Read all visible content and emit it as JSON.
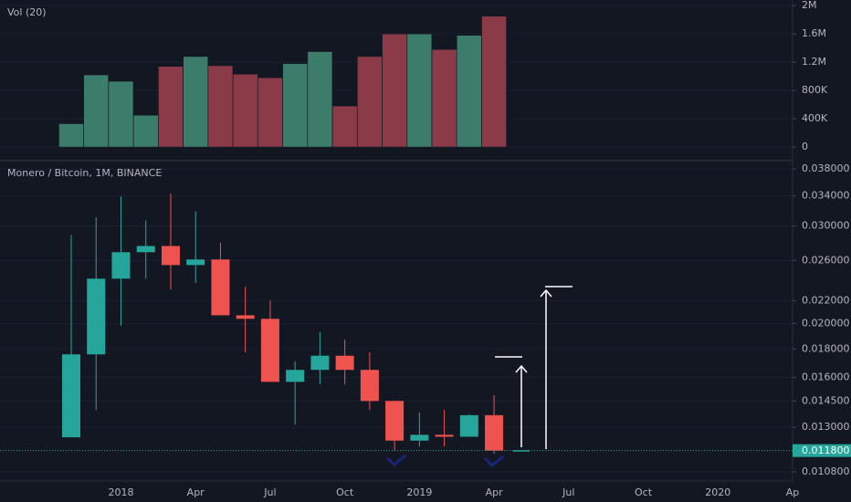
{
  "chart_data": [
    {
      "type": "bar",
      "title": "Vol (20)",
      "values": [
        330000,
        1020000,
        930000,
        450000,
        1140000,
        1280000,
        1150000,
        1030000,
        980000,
        1180000,
        1350000,
        580000,
        1280000,
        1600000,
        1600000,
        1380000,
        1580000,
        1850000,
        null,
        null,
        null,
        null,
        null,
        null,
        null,
        null,
        null,
        null,
        null,
        null
      ],
      "colors": [
        "#3b7d6a",
        "#3b7d6a",
        "#3b7d6a",
        "#3b7d6a",
        "#8b3a48",
        "#3b7d6a",
        "#8b3a48",
        "#8b3a48",
        "#8b3a48",
        "#3b7d6a",
        "#3b7d6a",
        "#8b3a48",
        "#8b3a48",
        "#8b3a48",
        "#3b7d6a",
        "#8b3a48",
        "#3b7d6a",
        "#8b3a48",
        null,
        null,
        null,
        null,
        null,
        null,
        null,
        null,
        null,
        null,
        null,
        null
      ],
      "ylim": [
        -180000,
        2080000
      ],
      "yticks": [
        0,
        {
          "value": 400000,
          "label": "400K"
        },
        {
          "value": 800000,
          "label": "800K"
        },
        {
          "value": 1200000,
          "label": "1.2M"
        },
        {
          "value": 1600000,
          "label": "1.6M"
        },
        {
          "value": 2000000,
          "label": "2M"
        }
      ]
    },
    {
      "type": "candlestick",
      "title": "Monero / Bitcoin, 1M, BINANCE",
      "categories": [
        null,
        null,
        "2018",
        null,
        null,
        "Apr",
        null,
        null,
        "Jul",
        null,
        null,
        "Oct",
        null,
        null,
        "2019",
        null,
        null,
        "Apr",
        null,
        null,
        "Jul",
        null,
        null,
        "Oct",
        null,
        null,
        "2020",
        null,
        null,
        "Ap"
      ],
      "open": [
        0.01247,
        0.0176,
        0.0241,
        0.0269,
        0.0276,
        0.0255,
        0.0261,
        0.0207,
        0.0204,
        0.0157,
        0.0165,
        0.0175,
        0.0165,
        0.0145,
        0.0123,
        0.0126,
        0.0125,
        0.01367,
        null,
        null,
        null,
        null,
        null,
        null,
        null,
        null,
        null,
        null,
        null,
        null
      ],
      "high": [
        0.0289,
        0.0311,
        0.0339,
        0.0307,
        0.0343,
        0.0319,
        0.028,
        0.0233,
        0.022,
        0.0171,
        0.0193,
        0.0187,
        0.01775,
        0.01454,
        0.01383,
        0.01398,
        0.01371,
        0.01486,
        null,
        null,
        null,
        null,
        null,
        null,
        null,
        null,
        null,
        null,
        null,
        null
      ],
      "low": [
        0.01247,
        0.01398,
        0.0198,
        0.0241,
        0.02305,
        0.02368,
        0.0207,
        0.01775,
        0.0157,
        0.01315,
        0.01555,
        0.01555,
        0.01398,
        0.01179,
        0.012,
        0.012,
        0.0125,
        0.01165,
        null,
        null,
        null,
        null,
        null,
        null,
        null,
        null,
        null,
        null,
        null,
        null
      ],
      "close": [
        0.0176,
        0.0241,
        0.0269,
        0.0276,
        0.0255,
        0.0261,
        0.0207,
        0.0204,
        0.0157,
        0.0165,
        0.0175,
        0.0165,
        0.0145,
        0.0123,
        0.0126,
        0.0125,
        0.01367,
        0.0118,
        null,
        null,
        null,
        null,
        null,
        null,
        null,
        null,
        null,
        null,
        null,
        null
      ],
      "up_color": "#26a69a",
      "down_color": "#ef5350",
      "log_scale": true,
      "ylim": [
        0.0104,
        0.0392
      ],
      "yticks": [
        {
          "value": 0.0108,
          "label": "0.010800"
        },
        {
          "value": 0.013,
          "label": "0.013000"
        },
        {
          "value": 0.0145,
          "label": "0.014500"
        },
        {
          "value": 0.016,
          "label": "0.016000"
        },
        {
          "value": 0.018,
          "label": "0.018000"
        },
        {
          "value": 0.02,
          "label": "0.020000"
        },
        {
          "value": 0.022,
          "label": "0.022000"
        },
        {
          "value": 0.026,
          "label": "0.026000"
        },
        {
          "value": 0.03,
          "label": "0.030000"
        },
        {
          "value": 0.034,
          "label": "0.034000"
        },
        {
          "value": 0.038,
          "label": "0.038000"
        }
      ],
      "last_price": {
        "value": 0.0118,
        "label": "0.011800"
      }
    }
  ]
}
